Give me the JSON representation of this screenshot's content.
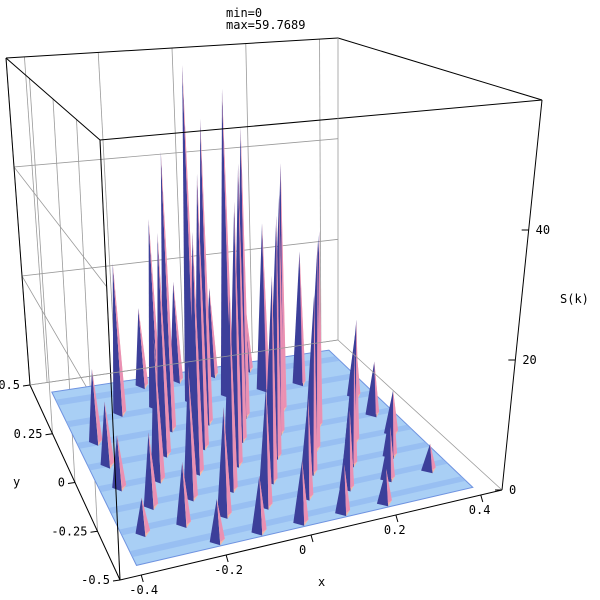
{
  "chart_data": {
    "type": "surface3d",
    "title_lines": [
      "min=0",
      "max=59.7689"
    ],
    "xlabel": "x",
    "ylabel": "y",
    "zlabel": "S(k)",
    "xticks": [
      -0.4,
      -0.2,
      0,
      0.2,
      0.4
    ],
    "xtick_labels": [
      "-0.4",
      "-0.2",
      "0",
      "0.2",
      "0.4"
    ],
    "yticks": [
      0.5,
      0.25,
      0,
      -0.25,
      -0.5
    ],
    "ytick_labels": [
      "0.5",
      "0.25",
      "0",
      "-0.25",
      "-0.5"
    ],
    "zticks": [
      0,
      20,
      40
    ],
    "ztick_labels": [
      "0",
      "20",
      "40"
    ],
    "xlim": [
      -0.45,
      0.45
    ],
    "ylim": [
      -0.5,
      0.5
    ],
    "zlim": [
      0,
      60
    ],
    "z_min": 0,
    "z_max": 59.7689,
    "grid": true,
    "colors": {
      "surface_base": "#a9cff5",
      "surface_edge": "#6f93e0",
      "peak_light": "#f7b7a6",
      "peak_pink": "#e889b5",
      "peak_dark": "#3c3f9a",
      "box_line": "#000000",
      "grid_line": "#9a9a9a"
    },
    "peaks": [
      {
        "x": -0.05,
        "y": 0.3,
        "z": 59.8
      },
      {
        "x": 0.05,
        "y": 0.3,
        "z": 55.0
      },
      {
        "x": -0.05,
        "y": 0.18,
        "z": 52.0
      },
      {
        "x": 0.05,
        "y": 0.18,
        "z": 50.0
      },
      {
        "x": -0.15,
        "y": 0.18,
        "z": 47.0
      },
      {
        "x": 0.15,
        "y": 0.18,
        "z": 43.0
      },
      {
        "x": -0.1,
        "y": 0.06,
        "z": 45.0
      },
      {
        "x": 0.0,
        "y": 0.06,
        "z": 46.0
      },
      {
        "x": 0.1,
        "y": 0.06,
        "z": 40.0
      },
      {
        "x": -0.2,
        "y": 0.06,
        "z": 36.0
      },
      {
        "x": 0.2,
        "y": 0.06,
        "z": 33.0
      },
      {
        "x": -0.15,
        "y": -0.06,
        "z": 38.0
      },
      {
        "x": -0.05,
        "y": -0.06,
        "z": 42.0
      },
      {
        "x": 0.05,
        "y": -0.06,
        "z": 39.0
      },
      {
        "x": 0.15,
        "y": -0.06,
        "z": 34.0
      },
      {
        "x": -0.25,
        "y": -0.06,
        "z": 22.0
      },
      {
        "x": 0.25,
        "y": -0.06,
        "z": 20.0
      },
      {
        "x": -0.1,
        "y": -0.18,
        "z": 30.0
      },
      {
        "x": 0.0,
        "y": -0.18,
        "z": 32.0
      },
      {
        "x": 0.1,
        "y": -0.18,
        "z": 28.0
      },
      {
        "x": -0.2,
        "y": -0.18,
        "z": 20.0
      },
      {
        "x": 0.2,
        "y": -0.18,
        "z": 18.0
      },
      {
        "x": -0.3,
        "y": -0.18,
        "z": 11.0
      },
      {
        "x": 0.3,
        "y": -0.18,
        "z": 10.0
      },
      {
        "x": -0.15,
        "y": -0.3,
        "z": 16.0
      },
      {
        "x": -0.05,
        "y": -0.3,
        "z": 18.0
      },
      {
        "x": 0.05,
        "y": -0.3,
        "z": 15.0
      },
      {
        "x": 0.15,
        "y": -0.3,
        "z": 12.0
      },
      {
        "x": -0.25,
        "y": -0.3,
        "z": 9.0
      },
      {
        "x": 0.25,
        "y": -0.3,
        "z": 8.0
      },
      {
        "x": -0.35,
        "y": -0.3,
        "z": 5.0
      },
      {
        "x": 0.35,
        "y": -0.3,
        "z": 4.0
      },
      {
        "x": -0.25,
        "y": 0.3,
        "z": 26.0
      },
      {
        "x": 0.25,
        "y": 0.3,
        "z": 24.0
      },
      {
        "x": -0.15,
        "y": 0.3,
        "z": 33.0
      },
      {
        "x": 0.15,
        "y": 0.3,
        "z": 30.0
      },
      {
        "x": -0.35,
        "y": 0.18,
        "z": 12.0
      },
      {
        "x": 0.35,
        "y": 0.18,
        "z": 11.0
      },
      {
        "x": -0.35,
        "y": 0.06,
        "z": 10.0
      },
      {
        "x": 0.35,
        "y": 0.06,
        "z": 9.0
      },
      {
        "x": -0.35,
        "y": -0.06,
        "z": 8.0
      },
      {
        "x": 0.35,
        "y": -0.06,
        "z": 7.0
      },
      {
        "x": -0.1,
        "y": -0.42,
        "z": 8.0
      },
      {
        "x": 0.0,
        "y": -0.42,
        "z": 9.0
      },
      {
        "x": 0.1,
        "y": -0.42,
        "z": 7.0
      },
      {
        "x": -0.2,
        "y": -0.42,
        "z": 6.0
      },
      {
        "x": 0.2,
        "y": -0.42,
        "z": 5.0
      },
      {
        "x": -0.05,
        "y": 0.42,
        "z": 18.0
      },
      {
        "x": 0.05,
        "y": 0.42,
        "z": 16.0
      },
      {
        "x": -0.15,
        "y": 0.42,
        "z": 14.0
      },
      {
        "x": 0.15,
        "y": 0.42,
        "z": 12.0
      }
    ]
  }
}
